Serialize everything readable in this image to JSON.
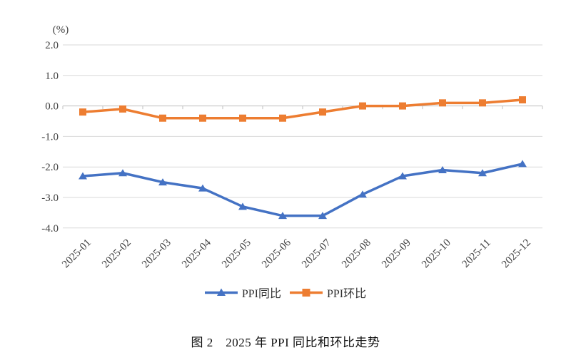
{
  "figure": {
    "caption": "图 2　2025 年 PPI 同比和环比走势",
    "unit_label": "(%)"
  },
  "chart_data": {
    "type": "line",
    "title": "",
    "xlabel": "",
    "ylabel": "(%)",
    "categories": [
      "2025-01",
      "2025-02",
      "2025-03",
      "2025-04",
      "2025-05",
      "2025-06",
      "2025-07",
      "2025-08",
      "2025-09",
      "2025-10",
      "2025-11",
      "2025-12"
    ],
    "series": [
      {
        "name": "PPI同比",
        "marker": "triangle",
        "color": "#4472C4",
        "values": [
          -2.3,
          -2.2,
          -2.5,
          -2.7,
          -3.3,
          -3.6,
          -3.6,
          -2.9,
          -2.3,
          -2.1,
          -2.2,
          -1.9
        ]
      },
      {
        "name": "PPI环比",
        "marker": "square",
        "color": "#ED7D31",
        "values": [
          -0.2,
          -0.1,
          -0.4,
          -0.4,
          -0.4,
          -0.4,
          -0.2,
          0.0,
          0.0,
          0.1,
          0.1,
          0.2
        ]
      }
    ],
    "ylim": [
      -4.0,
      2.0
    ],
    "ytick_step": 1.0,
    "grid": true,
    "gridline_color": "#D9D9D9",
    "axis_line_color": "#BFBFBF",
    "legend_position": "bottom"
  }
}
